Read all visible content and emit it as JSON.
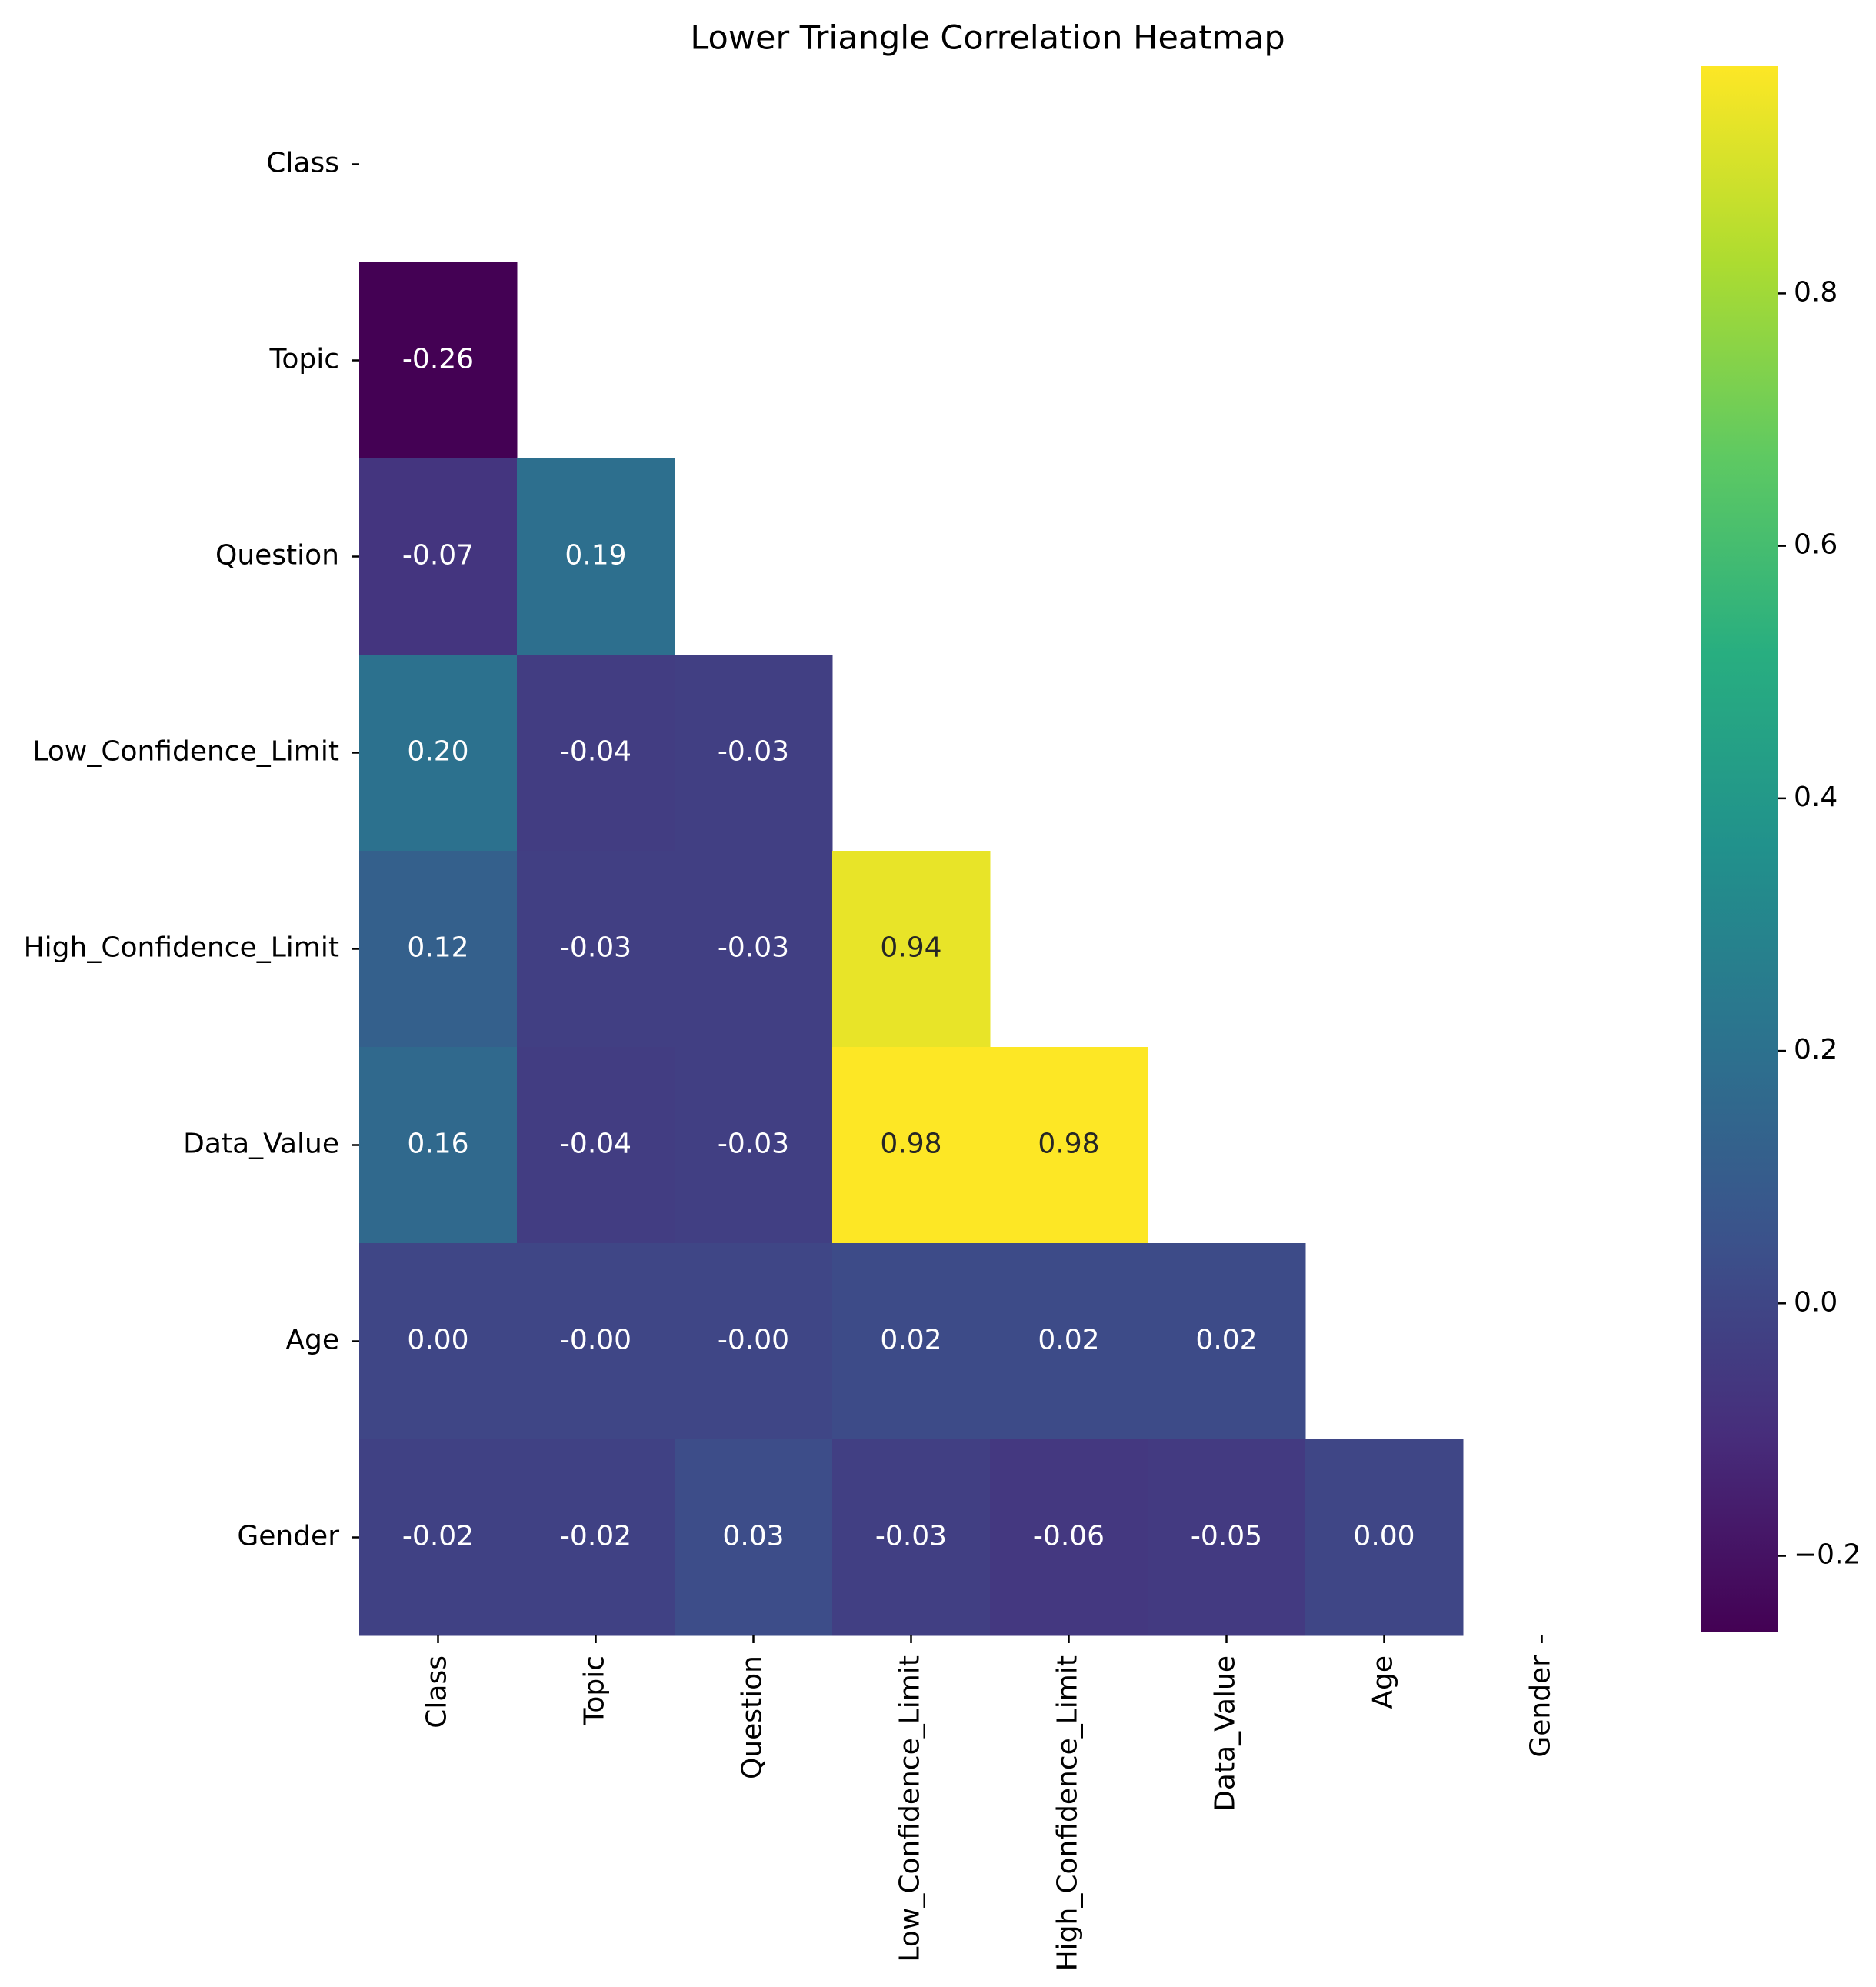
{
  "chart_data": {
    "type": "heatmap",
    "title": "Lower Triangle Correlation Heatmap",
    "variables": [
      "Class",
      "Topic",
      "Question",
      "Low_Confidence_Limit",
      "High_Confidence_Limit",
      "Data_Value",
      "Age",
      "Gender"
    ],
    "mask": "upper triangle including diagonal",
    "matrix": [
      [
        null,
        null,
        null,
        null,
        null,
        null,
        null,
        null
      ],
      [
        -0.26,
        null,
        null,
        null,
        null,
        null,
        null,
        null
      ],
      [
        -0.07,
        0.19,
        null,
        null,
        null,
        null,
        null,
        null
      ],
      [
        0.2,
        -0.04,
        -0.03,
        null,
        null,
        null,
        null,
        null
      ],
      [
        0.12,
        -0.03,
        -0.03,
        0.94,
        null,
        null,
        null,
        null
      ],
      [
        0.16,
        -0.04,
        -0.03,
        0.98,
        0.98,
        null,
        null,
        null
      ],
      [
        0.0,
        0.0,
        0.0,
        0.02,
        0.02,
        0.02,
        null,
        null
      ],
      [
        -0.02,
        -0.02,
        0.03,
        -0.03,
        -0.06,
        -0.05,
        0.0,
        null
      ]
    ],
    "cell_labels": [
      [
        null,
        null,
        null,
        null,
        null,
        null,
        null,
        null
      ],
      [
        "-0.26",
        null,
        null,
        null,
        null,
        null,
        null,
        null
      ],
      [
        "-0.07",
        "0.19",
        null,
        null,
        null,
        null,
        null,
        null
      ],
      [
        "0.20",
        "-0.04",
        "-0.03",
        null,
        null,
        null,
        null,
        null
      ],
      [
        "0.12",
        "-0.03",
        "-0.03",
        "0.94",
        null,
        null,
        null,
        null
      ],
      [
        "0.16",
        "-0.04",
        "-0.03",
        "0.98",
        "0.98",
        null,
        null,
        null
      ],
      [
        "0.00",
        "-0.00",
        "-0.00",
        "0.02",
        "0.02",
        "0.02",
        null,
        null
      ],
      [
        "-0.02",
        "-0.02",
        "0.03",
        "-0.03",
        "-0.06",
        "-0.05",
        "0.00",
        null
      ]
    ],
    "colormap": "viridis",
    "colorbar": {
      "vmin": -0.26,
      "vmax": 0.98,
      "ticks": [
        -0.2,
        0.0,
        0.2,
        0.4,
        0.6,
        0.8
      ],
      "tick_labels": [
        "−0.2",
        "0.0",
        "0.2",
        "0.4",
        "0.6",
        "0.8"
      ]
    },
    "xlabel": "",
    "ylabel": ""
  }
}
